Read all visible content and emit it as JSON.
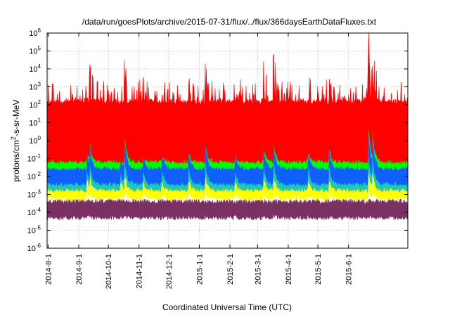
{
  "chart_data": {
    "type": "line",
    "title": "/data/run/goesPlots/archive/2015-07-31/flux/../flux/366daysEarthDataFluxes.txt",
    "xlabel": "Coordinated Universal Time (UTC)",
    "ylabel": "protons/cm²-s-sr-MeV",
    "ylabel_parts": {
      "before": "protons/cm",
      "sup": "2",
      "after": "-s-sr-MeV"
    },
    "yscale": "log",
    "ylim": [
      1e-06,
      1000000.0
    ],
    "xlim": [
      "2014-07-31",
      "2015-07-31"
    ],
    "grid": true,
    "y_ticks": [
      {
        "value": 1e-06,
        "base": "10",
        "exp": "-6"
      },
      {
        "value": 1e-05,
        "base": "10",
        "exp": "-5"
      },
      {
        "value": 0.0001,
        "base": "10",
        "exp": "-4"
      },
      {
        "value": 0.001,
        "base": "10",
        "exp": "-3"
      },
      {
        "value": 0.01,
        "base": "10",
        "exp": "-2"
      },
      {
        "value": 0.1,
        "base": "10",
        "exp": "-1"
      },
      {
        "value": 1,
        "base": "10",
        "exp": "0"
      },
      {
        "value": 10,
        "base": "10",
        "exp": "1"
      },
      {
        "value": 100,
        "base": "10",
        "exp": "2"
      },
      {
        "value": 1000,
        "base": "10",
        "exp": "3"
      },
      {
        "value": 10000,
        "base": "10",
        "exp": "4"
      },
      {
        "value": 100000,
        "base": "10",
        "exp": "5"
      },
      {
        "value": 1000000,
        "base": "10",
        "exp": "6"
      }
    ],
    "x_ticks": [
      {
        "date": "2014-08-01",
        "label": "2014-8-1"
      },
      {
        "date": "2014-09-01",
        "label": "2014-9-1"
      },
      {
        "date": "2014-10-01",
        "label": "2014-10-1"
      },
      {
        "date": "2014-11-01",
        "label": "2014-11-1"
      },
      {
        "date": "2014-12-01",
        "label": "2014-12-1"
      },
      {
        "date": "2015-01-01",
        "label": "2015-1-1"
      },
      {
        "date": "2015-02-01",
        "label": "2015-2-1"
      },
      {
        "date": "2015-03-01",
        "label": "2015-3-1"
      },
      {
        "date": "2015-04-01",
        "label": "2015-4-1"
      },
      {
        "date": "2015-05-01",
        "label": "2015-5-1"
      },
      {
        "date": "2015-06-01",
        "label": "2015-6-1"
      }
    ],
    "events": [
      {
        "date": "2014-09-09",
        "peak": 30
      },
      {
        "date": "2014-09-12",
        "peak": 400
      },
      {
        "date": "2014-10-13",
        "peak": 3
      },
      {
        "date": "2014-10-17",
        "peak": 10000
      },
      {
        "date": "2014-11-05",
        "peak": 8
      },
      {
        "date": "2014-11-24",
        "peak": 15
      },
      {
        "date": "2014-12-21",
        "peak": 30
      },
      {
        "date": "2015-01-07",
        "peak": 300
      },
      {
        "date": "2015-02-06",
        "peak": 15
      },
      {
        "date": "2015-03-07",
        "peak": 120
      },
      {
        "date": "2015-03-17",
        "peak": 1000
      },
      {
        "date": "2015-04-21",
        "peak": 30
      },
      {
        "date": "2015-05-12",
        "peak": 120
      },
      {
        "date": "2015-06-21",
        "peak": 40000
      },
      {
        "date": "2015-06-25",
        "peak": 10000
      }
    ],
    "series": [
      {
        "color": "#7a3060",
        "base": 0.00015,
        "low": 5e-05,
        "high": 0.0004,
        "spread": 0.15
      },
      {
        "color": "#ffff00",
        "base": 0.0012,
        "low": 0.0006,
        "high": 0.002,
        "spread": 0.2
      },
      {
        "color": "#20c8b4",
        "base": 0.004,
        "low": 0.0018,
        "high": 0.007,
        "spread": 0.25
      },
      {
        "color": "#1060ff",
        "base": 0.02,
        "low": 0.004,
        "high": 0.05,
        "spread": 0.35
      },
      {
        "color": "#00ff00",
        "base": 0.07,
        "low": 0.03,
        "high": 0.12,
        "spread": 0.3
      },
      {
        "color": "#ff0000",
        "base": 3,
        "low": 0.07,
        "high": 150,
        "spread": 1.3
      }
    ]
  }
}
